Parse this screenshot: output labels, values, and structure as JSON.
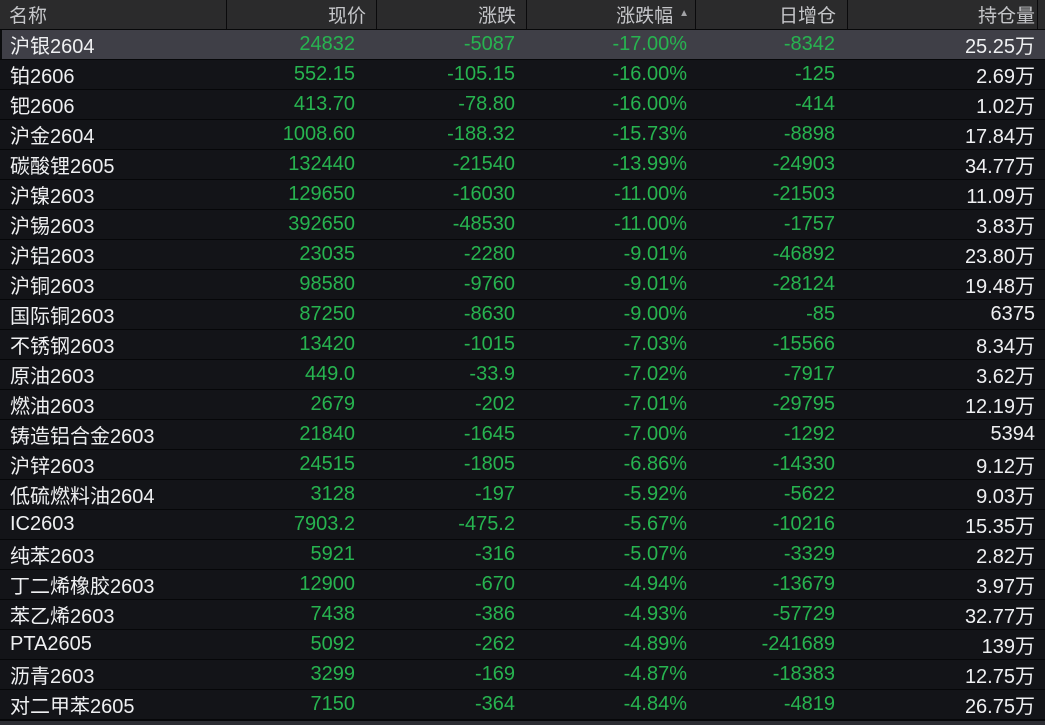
{
  "table": {
    "sort_icon_asc": "▲",
    "columns": [
      {
        "key": "name",
        "label": "名称",
        "align": "left"
      },
      {
        "key": "price",
        "label": "现价",
        "align": "right"
      },
      {
        "key": "change",
        "label": "涨跌",
        "align": "right"
      },
      {
        "key": "change_pct",
        "label": "涨跌幅",
        "align": "right",
        "sorted": "asc"
      },
      {
        "key": "oi_change",
        "label": "日增仓",
        "align": "right"
      },
      {
        "key": "open_interest",
        "label": "持仓量",
        "align": "right"
      }
    ],
    "rows": [
      {
        "name": "沪银2604",
        "price": "24832",
        "change": "-5087",
        "change_pct": "-17.00%",
        "oi_change": "-8342",
        "open_interest": "25.25万",
        "selected": true
      },
      {
        "name": "铂2606",
        "price": "552.15",
        "change": "-105.15",
        "change_pct": "-16.00%",
        "oi_change": "-125",
        "open_interest": "2.69万"
      },
      {
        "name": "钯2606",
        "price": "413.70",
        "change": "-78.80",
        "change_pct": "-16.00%",
        "oi_change": "-414",
        "open_interest": "1.02万"
      },
      {
        "name": "沪金2604",
        "price": "1008.60",
        "change": "-188.32",
        "change_pct": "-15.73%",
        "oi_change": "-8898",
        "open_interest": "17.84万"
      },
      {
        "name": "碳酸锂2605",
        "price": "132440",
        "change": "-21540",
        "change_pct": "-13.99%",
        "oi_change": "-24903",
        "open_interest": "34.77万"
      },
      {
        "name": "沪镍2603",
        "price": "129650",
        "change": "-16030",
        "change_pct": "-11.00%",
        "oi_change": "-21503",
        "open_interest": "11.09万"
      },
      {
        "name": "沪锡2603",
        "price": "392650",
        "change": "-48530",
        "change_pct": "-11.00%",
        "oi_change": "-1757",
        "open_interest": "3.83万"
      },
      {
        "name": "沪铝2603",
        "price": "23035",
        "change": "-2280",
        "change_pct": "-9.01%",
        "oi_change": "-46892",
        "open_interest": "23.80万"
      },
      {
        "name": "沪铜2603",
        "price": "98580",
        "change": "-9760",
        "change_pct": "-9.01%",
        "oi_change": "-28124",
        "open_interest": "19.48万"
      },
      {
        "name": "国际铜2603",
        "price": "87250",
        "change": "-8630",
        "change_pct": "-9.00%",
        "oi_change": "-85",
        "open_interest": "6375"
      },
      {
        "name": "不锈钢2603",
        "price": "13420",
        "change": "-1015",
        "change_pct": "-7.03%",
        "oi_change": "-15566",
        "open_interest": "8.34万"
      },
      {
        "name": "原油2603",
        "price": "449.0",
        "change": "-33.9",
        "change_pct": "-7.02%",
        "oi_change": "-7917",
        "open_interest": "3.62万"
      },
      {
        "name": "燃油2603",
        "price": "2679",
        "change": "-202",
        "change_pct": "-7.01%",
        "oi_change": "-29795",
        "open_interest": "12.19万"
      },
      {
        "name": "铸造铝合金2603",
        "price": "21840",
        "change": "-1645",
        "change_pct": "-7.00%",
        "oi_change": "-1292",
        "open_interest": "5394"
      },
      {
        "name": "沪锌2603",
        "price": "24515",
        "change": "-1805",
        "change_pct": "-6.86%",
        "oi_change": "-14330",
        "open_interest": "9.12万"
      },
      {
        "name": "低硫燃料油2604",
        "price": "3128",
        "change": "-197",
        "change_pct": "-5.92%",
        "oi_change": "-5622",
        "open_interest": "9.03万"
      },
      {
        "name": "IC2603",
        "price": "7903.2",
        "change": "-475.2",
        "change_pct": "-5.67%",
        "oi_change": "-10216",
        "open_interest": "15.35万"
      },
      {
        "name": "纯苯2603",
        "price": "5921",
        "change": "-316",
        "change_pct": "-5.07%",
        "oi_change": "-3329",
        "open_interest": "2.82万"
      },
      {
        "name": "丁二烯橡胶2603",
        "price": "12900",
        "change": "-670",
        "change_pct": "-4.94%",
        "oi_change": "-13679",
        "open_interest": "3.97万"
      },
      {
        "name": "苯乙烯2603",
        "price": "7438",
        "change": "-386",
        "change_pct": "-4.93%",
        "oi_change": "-57729",
        "open_interest": "32.77万"
      },
      {
        "name": "PTA2605",
        "price": "5092",
        "change": "-262",
        "change_pct": "-4.89%",
        "oi_change": "-241689",
        "open_interest": "139万"
      },
      {
        "name": "沥青2603",
        "price": "3299",
        "change": "-169",
        "change_pct": "-4.87%",
        "oi_change": "-18383",
        "open_interest": "12.75万"
      },
      {
        "name": "对二甲苯2605",
        "price": "7150",
        "change": "-364",
        "change_pct": "-4.84%",
        "oi_change": "-4819",
        "open_interest": "26.75万"
      }
    ]
  },
  "colors": {
    "down_green": "#27b450",
    "white_text": "#eff0f2",
    "header_bg": "#2b2b2c",
    "header_text": "#c5c6c9",
    "row_bg": "#131418",
    "selected_row_bg": "#3f3f47",
    "scrollbar_strip": "#2c2d33"
  }
}
